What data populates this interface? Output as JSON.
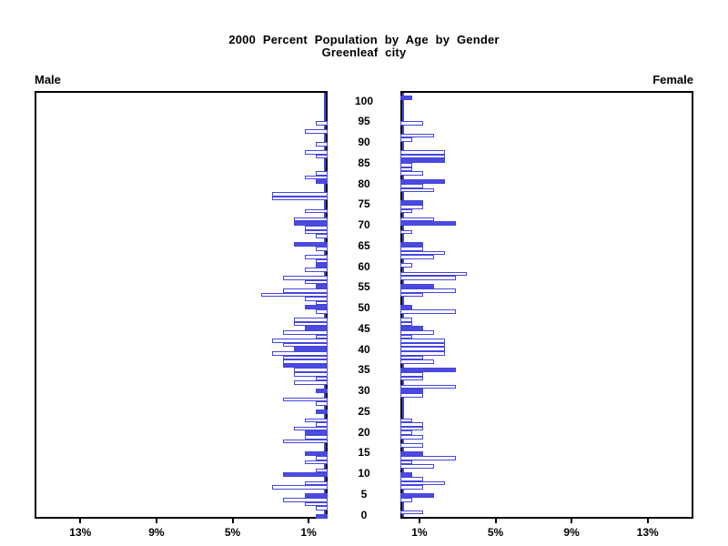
{
  "header": {
    "title_line1": "2000 Percent Population by Age by Gender",
    "title_line2": "Greenleaf city"
  },
  "panels": {
    "male_label": "Male",
    "female_label": "Female"
  },
  "colors": {
    "bar_blue": "#4646dd",
    "bar_fill": "#4b4be0",
    "frame": "#000000",
    "text": "#000000",
    "background": "#ffffff"
  },
  "chart_data": {
    "type": "bar",
    "subtype": "population-pyramid",
    "title": "2000 Percent Population by Age by Gender",
    "subtitle": "Greenleaf city",
    "unit": "percent of population",
    "age_min": 0,
    "age_max": 100,
    "age_tick_labels": [
      0,
      5,
      10,
      15,
      20,
      25,
      30,
      35,
      40,
      45,
      50,
      55,
      60,
      65,
      70,
      75,
      80,
      85,
      90,
      95,
      100
    ],
    "pct_tick_values": [
      1,
      5,
      9,
      13
    ],
    "pct_tick_labels": [
      "1%",
      "5%",
      "9%",
      "13%"
    ],
    "x_max_pct": 15.4,
    "grid": false,
    "legend": "none",
    "series": [
      {
        "name": "Male",
        "side": "left",
        "values": [
          0.6,
          0,
          0.6,
          1.2,
          2.35,
          1.2,
          0,
          2.9,
          1.2,
          0,
          2.35,
          0.6,
          0,
          1.2,
          0.6,
          1.2,
          0,
          0,
          2.35,
          1.2,
          1.2,
          1.75,
          0.6,
          1.2,
          0,
          0.6,
          0,
          0.6,
          2.35,
          0,
          0.6,
          0,
          1.75,
          0.6,
          1.75,
          1.75,
          2.35,
          2.35,
          2.35,
          2.9,
          1.75,
          2.35,
          2.9,
          0.6,
          2.35,
          1.2,
          1.75,
          1.75,
          0,
          0.6,
          1.2,
          0.6,
          1.2,
          3.5,
          2.35,
          0.6,
          1.2,
          2.35,
          0,
          1.2,
          0.6,
          0.6,
          1.2,
          0,
          0.6,
          1.75,
          0,
          0.6,
          1.2,
          1.2,
          1.75,
          1.75,
          0,
          1.2,
          0,
          0,
          2.9,
          2.9,
          0,
          0,
          0.6,
          1.2,
          0.6,
          0,
          0,
          0,
          0.6,
          1.2,
          0,
          0.6,
          0,
          0,
          1.2,
          0,
          0.6,
          0,
          0,
          0,
          0,
          0,
          0
        ],
        "solid_ages": [
          0,
          5,
          10,
          15,
          20,
          25,
          30,
          36,
          40,
          45,
          50,
          55,
          60,
          65,
          70,
          80
        ]
      },
      {
        "name": "Female",
        "side": "right",
        "values": [
          0,
          1.2,
          0,
          0,
          0.6,
          1.75,
          0,
          1.2,
          2.35,
          1.2,
          0.6,
          0,
          1.75,
          0.6,
          2.9,
          1.2,
          0,
          1.2,
          0,
          1.2,
          0.6,
          1.2,
          1.2,
          0.6,
          0,
          0,
          0,
          0,
          0,
          1.2,
          1.2,
          2.9,
          0,
          1.2,
          1.2,
          2.9,
          0,
          1.75,
          1.2,
          2.35,
          2.35,
          2.35,
          2.35,
          0.6,
          1.75,
          1.2,
          0.6,
          0.6,
          0,
          2.9,
          0.6,
          0,
          0,
          1.2,
          2.9,
          1.75,
          0,
          2.9,
          3.5,
          0,
          0.6,
          0,
          1.75,
          2.35,
          1.2,
          1.2,
          0,
          0,
          0.6,
          0,
          2.9,
          1.75,
          0,
          0.6,
          1.2,
          1.2,
          0,
          0,
          1.75,
          1.2,
          2.35,
          0,
          1.2,
          0.6,
          0.6,
          2.35,
          2.35,
          2.35,
          0,
          0,
          0.6,
          1.75,
          0,
          0,
          1.2,
          0,
          0,
          0,
          0,
          0,
          0.6
        ],
        "solid_ages": [
          5,
          10,
          15,
          30,
          35,
          45,
          50,
          55,
          65,
          70,
          75,
          80,
          85,
          100
        ]
      }
    ]
  }
}
